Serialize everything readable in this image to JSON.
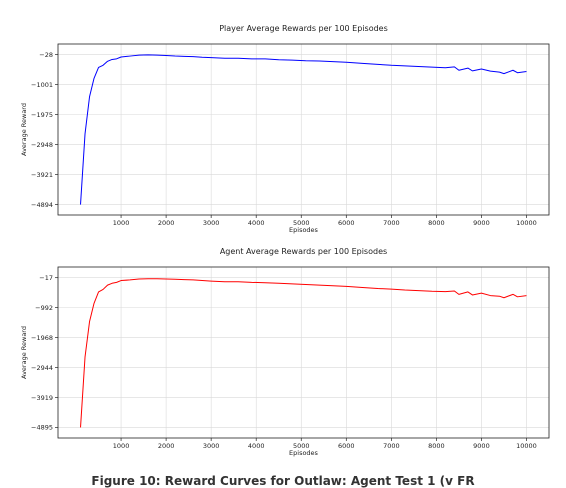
{
  "caption": "Figure 10: Reward Curves for Outlaw: Agent Test 1 (v FR",
  "chart_data": [
    {
      "type": "line",
      "title": "Player Average Rewards per 100 Episodes",
      "xlabel": "Episodes",
      "ylabel": "Average Reward",
      "xlim": [
        -400,
        10500
      ],
      "ylim": [
        -5233,
        311
      ],
      "xticks": [
        1000,
        2000,
        3000,
        4000,
        5000,
        6000,
        7000,
        8000,
        9000,
        10000
      ],
      "yticks": [
        -28,
        -1001,
        -1975,
        -2948,
        -3921,
        -4894
      ],
      "grid": true,
      "color": "#0000ff",
      "x": [
        100,
        200,
        300,
        400,
        500,
        600,
        700,
        800,
        900,
        1000,
        1200,
        1400,
        1600,
        1800,
        2000,
        2200,
        2400,
        2600,
        2800,
        3000,
        3300,
        3600,
        3900,
        4200,
        4500,
        4800,
        5100,
        5400,
        5700,
        6000,
        6200,
        6400,
        6700,
        7000,
        7300,
        7600,
        7900,
        8200,
        8400,
        8500,
        8700,
        8800,
        9000,
        9200,
        9400,
        9500,
        9700,
        9800,
        10000
      ],
      "y": [
        -4894,
        -2600,
        -1400,
        -800,
        -450,
        -380,
        -250,
        -190,
        -170,
        -110,
        -80,
        -50,
        -40,
        -50,
        -60,
        -80,
        -90,
        -100,
        -120,
        -130,
        -150,
        -150,
        -170,
        -170,
        -200,
        -210,
        -230,
        -240,
        -260,
        -280,
        -300,
        -320,
        -350,
        -380,
        -400,
        -420,
        -440,
        -460,
        -430,
        -540,
        -470,
        -560,
        -500,
        -570,
        -600,
        -650,
        -540,
        -620,
        -580
      ]
    },
    {
      "type": "line",
      "title": "Agent Average Rewards per 100 Episodes",
      "xlabel": "Episodes",
      "ylabel": "Average Reward",
      "xlim": [
        -400,
        10500
      ],
      "ylim": [
        -5239,
        331
      ],
      "xticks": [
        1000,
        2000,
        3000,
        4000,
        5000,
        6000,
        7000,
        8000,
        9000,
        10000
      ],
      "yticks": [
        -17,
        -992,
        -1968,
        -2944,
        -3919,
        -4895
      ],
      "grid": true,
      "color": "#ff0000",
      "x": [
        100,
        200,
        300,
        400,
        500,
        600,
        700,
        800,
        900,
        1000,
        1200,
        1400,
        1600,
        1800,
        2000,
        2200,
        2400,
        2600,
        2800,
        3000,
        3300,
        3600,
        3900,
        4200,
        4500,
        4800,
        5100,
        5400,
        5700,
        6000,
        6200,
        6400,
        6700,
        7000,
        7300,
        7600,
        7900,
        8200,
        8400,
        8500,
        8700,
        8800,
        9000,
        9200,
        9400,
        9500,
        9700,
        9800,
        10000
      ],
      "y": [
        -4895,
        -2600,
        -1450,
        -850,
        -480,
        -400,
        -260,
        -200,
        -170,
        -110,
        -90,
        -60,
        -50,
        -50,
        -60,
        -70,
        -80,
        -90,
        -110,
        -130,
        -150,
        -150,
        -170,
        -180,
        -200,
        -220,
        -240,
        -260,
        -280,
        -300,
        -320,
        -340,
        -370,
        -390,
        -420,
        -440,
        -460,
        -470,
        -450,
        -560,
        -480,
        -580,
        -520,
        -600,
        -620,
        -670,
        -560,
        -640,
        -600
      ]
    }
  ]
}
